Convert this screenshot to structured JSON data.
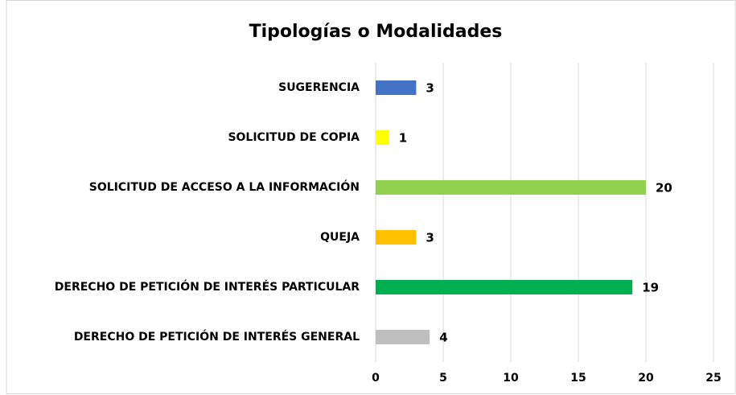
{
  "chart_data": {
    "type": "hbar",
    "title": "Tipologías o Modalidades",
    "categories": [
      "SUGERENCIA",
      "SOLICITUD DE COPIA",
      "SOLICITUD DE ACCESO A LA INFORMACIÓN",
      "QUEJA",
      "DERECHO DE PETICIÓN DE INTERÉS PARTICULAR",
      "DERECHO DE PETICIÓN DE INTERÉS GENERAL"
    ],
    "values": [
      3,
      1,
      20,
      3,
      19,
      4
    ],
    "colors": [
      "#4472c4",
      "#ffff00",
      "#92d050",
      "#ffc000",
      "#00b050",
      "#bfbfbf"
    ],
    "xlim": [
      0,
      25
    ],
    "xticks": [
      0,
      5,
      10,
      15,
      20,
      25
    ],
    "grid": true
  }
}
